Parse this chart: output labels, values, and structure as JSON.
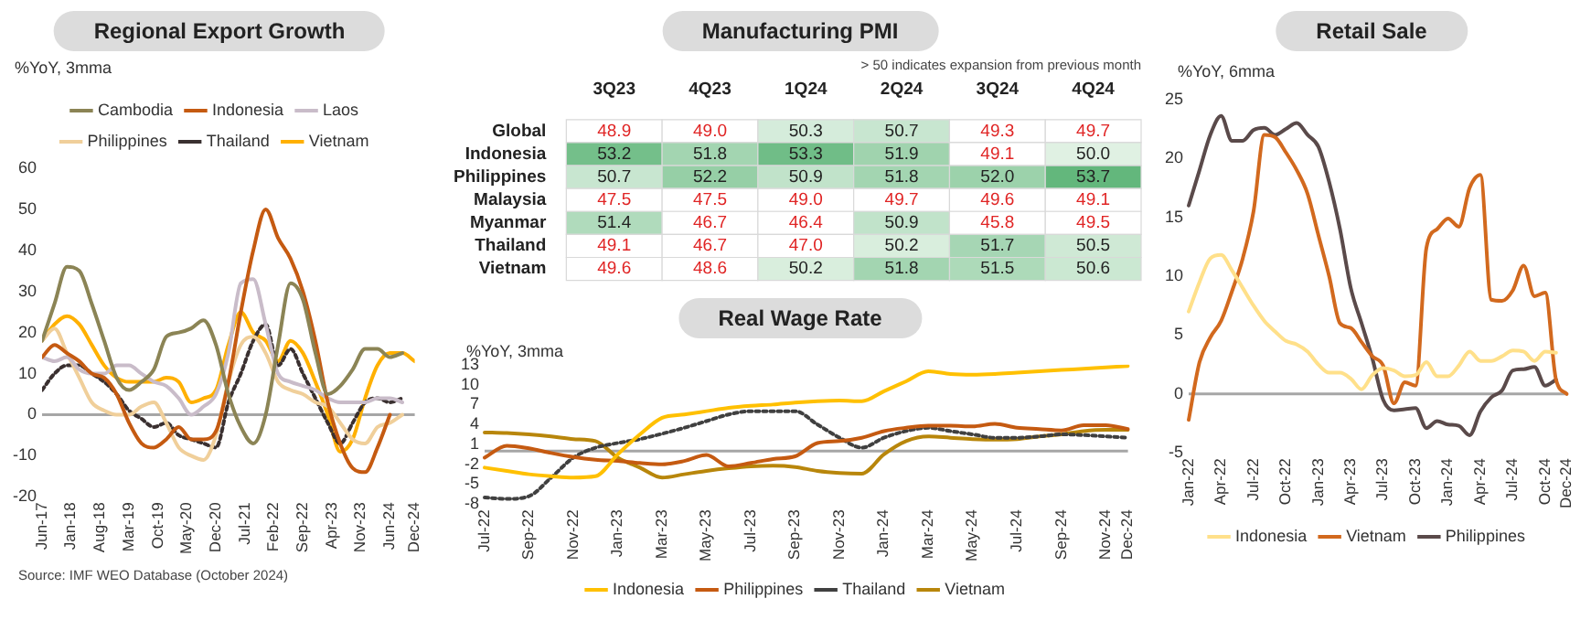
{
  "chart_data": [
    {
      "type": "line",
      "title": "Regional Export Growth",
      "ylabel": "%YoY, 3mma",
      "legend": "top",
      "ylim": [
        -20,
        60
      ],
      "yticks": [
        -20,
        -10,
        0,
        10,
        20,
        30,
        40,
        50,
        60
      ],
      "x": [
        "2017-06",
        "2017-09",
        "2017-12",
        "2018-03",
        "2018-06",
        "2018-09",
        "2018-12",
        "2019-03",
        "2019-06",
        "2019-09",
        "2019-12",
        "2020-03",
        "2020-06",
        "2020-09",
        "2020-12",
        "2021-03",
        "2021-06",
        "2021-09",
        "2021-12",
        "2022-03",
        "2022-06",
        "2022-09",
        "2022-12",
        "2023-03",
        "2023-06",
        "2023-09",
        "2023-12",
        "2024-03",
        "2024-06",
        "2024-09",
        "2024-12"
      ],
      "xlim": [
        "2017-06",
        "2024-12"
      ],
      "xticks": [
        {
          "value": "2017-06",
          "label": "Jun-17"
        },
        {
          "value": "2018-01",
          "label": "Jan-18"
        },
        {
          "value": "2018-08",
          "label": "Aug-18"
        },
        {
          "value": "2019-03",
          "label": "Mar-19"
        },
        {
          "value": "2019-10",
          "label": "Oct-19"
        },
        {
          "value": "2020-05",
          "label": "May-20"
        },
        {
          "value": "2020-12",
          "label": "Dec-20"
        },
        {
          "value": "2021-07",
          "label": "Jul-21"
        },
        {
          "value": "2022-02",
          "label": "Feb-22"
        },
        {
          "value": "2022-09",
          "label": "Sep-22"
        },
        {
          "value": "2023-04",
          "label": "Apr-23"
        },
        {
          "value": "2023-11",
          "label": "Nov-23"
        },
        {
          "value": "2024-06",
          "label": "Jun-24"
        },
        {
          "value": "2024-12",
          "label": "Dec-24"
        }
      ],
      "ref_lines": [
        {
          "axis": "y",
          "value": 0,
          "color": "#a6a6a6"
        }
      ],
      "annotations": [
        "Source: IMF WEO Database (October 2024)"
      ],
      "series": [
        {
          "name": "Cambodia",
          "color": "#8b8455",
          "values": [
            18,
            27,
            36,
            35,
            27,
            18,
            9,
            6,
            8,
            11,
            19,
            20,
            21,
            23,
            17,
            5,
            -3,
            -7,
            0,
            17,
            32,
            28,
            15,
            5,
            7,
            11,
            16,
            16,
            14,
            15,
            null
          ]
        },
        {
          "name": "Indonesia",
          "color": "#c55a11",
          "values": [
            14,
            17,
            15,
            13,
            10,
            9,
            5,
            -2,
            -7,
            -8,
            -6,
            -3,
            -6,
            -6,
            -4,
            8,
            25,
            40,
            50,
            43,
            38,
            30,
            18,
            3,
            -7,
            -13,
            -14,
            -8,
            0,
            null,
            null
          ]
        },
        {
          "name": "Laos",
          "color": "#c9bcc9",
          "values": [
            14,
            13,
            14,
            11,
            10,
            10,
            12,
            12,
            10,
            8,
            7,
            4,
            0,
            2,
            5,
            15,
            32,
            33,
            22,
            10,
            8,
            7,
            6,
            4,
            3,
            3,
            3,
            4,
            4,
            3,
            null
          ]
        },
        {
          "name": "Philippines",
          "color": "#f0cf9a",
          "values": [
            18,
            21,
            15,
            9,
            3,
            1,
            0,
            0,
            2,
            3,
            -2,
            -8,
            -10,
            -11,
            -5,
            8,
            17,
            19,
            15,
            8,
            6,
            5,
            3,
            2,
            -2,
            -6,
            -7,
            -3,
            -2,
            0,
            null
          ]
        },
        {
          "name": "Thailand",
          "color": "#3a3030",
          "line_style": "dotted",
          "values": [
            6,
            10,
            12,
            12,
            10,
            8,
            5,
            1,
            -1,
            -3,
            -2,
            -5,
            -6,
            -7,
            -8,
            3,
            10,
            18,
            22,
            12,
            16,
            10,
            4,
            -2,
            -7,
            -2,
            3,
            4,
            3,
            4,
            null
          ]
        },
        {
          "name": "Vietnam",
          "color": "#ffb000",
          "values": [
            18,
            22,
            24,
            22,
            17,
            12,
            9,
            8,
            8,
            8,
            9,
            8,
            3,
            4,
            6,
            17,
            25,
            20,
            18,
            13,
            18,
            15,
            8,
            0,
            -9,
            -6,
            4,
            12,
            15,
            15,
            13
          ]
        }
      ]
    },
    {
      "type": "heatmap",
      "title": "Manufacturing PMI",
      "annotations": [
        "> 50 indicates expansion from previous month"
      ],
      "categories": [
        "3Q23",
        "4Q23",
        "1Q24",
        "2Q24",
        "3Q24",
        "4Q24"
      ],
      "y_categories": [
        "Global",
        "Indonesia",
        "Philippines",
        "Malaysia",
        "Myanmar",
        "Thailand",
        "Vietnam"
      ],
      "cell_labels": [
        [
          "48.9",
          "49.0",
          "50.3",
          "50.7",
          "49.3",
          "49.7"
        ],
        [
          "53.2",
          "51.8",
          "53.3",
          "51.9",
          "49.1",
          "50.0"
        ],
        [
          "50.7",
          "52.2",
          "50.9",
          "51.8",
          "52.0",
          "53.7"
        ],
        [
          "47.5",
          "47.5",
          "49.0",
          "49.7",
          "49.6",
          "49.1"
        ],
        [
          "51.4",
          "46.7",
          "46.4",
          "50.9",
          "45.8",
          "49.5"
        ],
        [
          "49.1",
          "46.7",
          "47.0",
          "50.2",
          "51.7",
          "50.5"
        ],
        [
          "49.6",
          "48.6",
          "50.2",
          "51.8",
          "51.5",
          "50.6"
        ]
      ],
      "cells": [
        [
          48.9,
          49.0,
          50.3,
          50.7,
          49.3,
          49.7
        ],
        [
          53.2,
          51.8,
          53.3,
          51.9,
          49.1,
          50.0
        ],
        [
          50.7,
          52.2,
          50.9,
          51.8,
          52.0,
          53.7
        ],
        [
          47.5,
          47.5,
          49.0,
          49.7,
          49.6,
          49.1
        ],
        [
          51.4,
          46.7,
          46.4,
          50.9,
          45.8,
          49.5
        ],
        [
          49.1,
          46.7,
          47.0,
          50.2,
          51.7,
          50.5
        ],
        [
          49.6,
          48.6,
          50.2,
          51.8,
          51.5,
          50.6
        ]
      ]
    },
    {
      "type": "line",
      "title": "Real Wage Rate",
      "ylabel": "%YoY, 3mma",
      "legend": "bottom",
      "ylim": [
        -8,
        13
      ],
      "yticks": [
        -8,
        -5,
        -2,
        1,
        4,
        7,
        10,
        13
      ],
      "categories": [
        "Jul-22",
        null,
        "Sep-22",
        null,
        "Nov-22",
        null,
        "Jan-23",
        null,
        "Mar-23",
        null,
        "May-23",
        null,
        "Jul-23",
        null,
        "Sep-23",
        null,
        "Nov-23",
        null,
        "Jan-24",
        null,
        "Mar-24",
        null,
        "May-24",
        null,
        "Jul-24",
        null,
        "Sep-24",
        null,
        "Nov-24",
        "Dec-24"
      ],
      "ref_lines": [
        {
          "axis": "y",
          "value": 0,
          "color": "#a6a6a6"
        }
      ],
      "series": [
        {
          "name": "Indonesia",
          "color": "#ffc000",
          "values": [
            -2.5,
            -3,
            -3.5,
            -3.8,
            -4,
            -3.8,
            -0.5,
            2.5,
            5,
            5.5,
            6,
            6.5,
            6.8,
            7,
            7.3,
            7.5,
            7.6,
            7.5,
            9,
            10.5,
            12,
            11.6,
            11.5,
            11.6,
            11.8,
            12,
            12.2,
            12.4,
            12.6,
            12.8
          ]
        },
        {
          "name": "Philippines",
          "color": "#c55a11",
          "values": [
            -1,
            0.8,
            0.4,
            -0.3,
            -0.9,
            -1.3,
            -1.5,
            -1.8,
            -2,
            -1.5,
            -0.6,
            -2.3,
            -1.8,
            -1.2,
            -0.8,
            1.2,
            1.5,
            2,
            3,
            3.5,
            3.8,
            3.8,
            3.7,
            4.1,
            3.5,
            3.3,
            3.1,
            3.9,
            3.9,
            3.3
          ]
        },
        {
          "name": "Thailand",
          "color": "#404040",
          "line_style": "dotted",
          "values": [
            -7,
            -7.2,
            -6.8,
            -4,
            -1,
            0.5,
            1.2,
            1.8,
            2.6,
            3.5,
            4.5,
            5.5,
            6,
            6,
            6,
            4,
            2,
            0.5,
            2,
            3,
            3.5,
            3,
            2.5,
            2,
            2,
            2.2,
            2.5,
            2.4,
            2.2,
            2
          ]
        },
        {
          "name": "Vietnam",
          "color": "#b8860b",
          "values": [
            2.8,
            2.7,
            2.5,
            2.2,
            1.8,
            1.5,
            -1,
            -2.5,
            -4,
            -3.5,
            -3,
            -2.6,
            -2.3,
            -2.2,
            -2.4,
            -3,
            -3.3,
            -3.4,
            -0.5,
            1.5,
            2.2,
            2,
            1.8,
            1.7,
            1.8,
            2.2,
            2.5,
            3,
            3.2,
            3.2
          ]
        }
      ]
    },
    {
      "type": "line",
      "title": "Retail Sale",
      "ylabel": "%YoY, 6mma",
      "legend": "bottom",
      "ylim": [
        -5,
        25
      ],
      "yticks": [
        -5,
        0,
        5,
        10,
        15,
        20,
        25
      ],
      "categories": [
        "Jan-22",
        null,
        null,
        "Apr-22",
        null,
        null,
        "Jul-22",
        null,
        null,
        "Oct-22",
        null,
        null,
        "Jan-23",
        null,
        null,
        "Apr-23",
        null,
        null,
        "Jul-23",
        null,
        null,
        "Oct-23",
        null,
        null,
        "Jan-24",
        null,
        null,
        "Apr-24",
        null,
        null,
        "Jul-24",
        null,
        null,
        "Oct-24",
        null,
        "Dec-24"
      ],
      "ref_lines": [
        {
          "axis": "y",
          "value": 0,
          "color": "#a6a6a6"
        }
      ],
      "series": [
        {
          "name": "Indonesia",
          "color": "#ffe08a",
          "values": [
            7,
            9.5,
            11.5,
            11.8,
            10.5,
            9,
            7.5,
            6.2,
            5.3,
            4.5,
            4.2,
            3.6,
            2.5,
            1.8,
            1.8,
            1.3,
            0.4,
            1.6,
            2.2,
            2,
            1.5,
            1.6,
            2.7,
            1.5,
            1.5,
            2.4,
            3.6,
            2.8,
            2.8,
            3.2,
            3.7,
            3.6,
            2.8,
            3.6,
            3.5,
            null
          ]
        },
        {
          "name": "Vietnam",
          "color": "#d2691e",
          "values": [
            -2.2,
            2.7,
            4.8,
            6.2,
            8.7,
            11.5,
            15.5,
            22,
            21.8,
            20.5,
            19,
            17,
            13.5,
            10,
            6,
            5.6,
            4.4,
            3.2,
            2.4,
            -0.8,
            1,
            0.7,
            12.4,
            14,
            14.9,
            14.2,
            17.5,
            18.6,
            8,
            7.9,
            8.8,
            10.9,
            8.3,
            8.6,
            1.2,
            0
          ]
        },
        {
          "name": "Philippines",
          "color": "#5a4a4a",
          "values": [
            16,
            19,
            22,
            23.6,
            21.5,
            21.5,
            22.4,
            22.6,
            22,
            22.5,
            23,
            22,
            21,
            18,
            14,
            9,
            6,
            3,
            -0.5,
            -1.4,
            -1.3,
            -1.2,
            -2.9,
            -2.3,
            -2.6,
            -2.7,
            -3.5,
            -1.5,
            -0.3,
            0.3,
            2,
            2.1,
            2.3,
            0.7,
            1.2,
            null
          ]
        }
      ]
    }
  ]
}
